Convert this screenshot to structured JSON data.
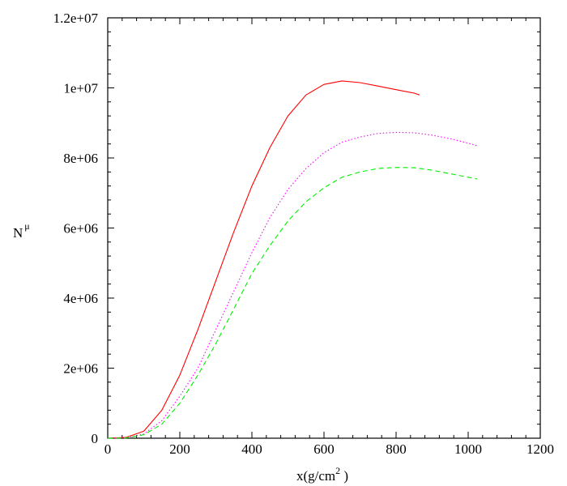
{
  "chart_data": {
    "type": "line",
    "title": "",
    "xlabel": "x(g/cm",
    "xlabel_sup": "2",
    "xlabel_end": " )",
    "ylabel": "N",
    "ylabel_sub": "μ",
    "xlim": [
      0,
      1200
    ],
    "ylim": [
      0,
      12000000
    ],
    "xticks": [
      0,
      200,
      400,
      600,
      800,
      1000,
      1200
    ],
    "yticks": [
      0,
      2000000,
      4000000,
      6000000,
      8000000,
      10000000,
      12000000
    ],
    "xtick_labels": [
      "0",
      "200",
      "400",
      "600",
      "800",
      "1000",
      "1200"
    ],
    "ytick_labels": [
      "0",
      "2e+06",
      "4e+06",
      "6e+06",
      "8e+06",
      "1e+07",
      "1.2e+07"
    ],
    "grid": false,
    "legend": "none",
    "series": [
      {
        "color": "#ff0000",
        "style": "solid",
        "x": [
          0,
          50,
          100,
          150,
          200,
          250,
          300,
          350,
          400,
          450,
          500,
          550,
          600,
          650,
          700,
          750,
          800,
          850,
          865
        ],
        "y": [
          0,
          20000,
          200000,
          800000,
          1800000,
          3100000,
          4500000,
          5900000,
          7200000,
          8300000,
          9200000,
          9800000,
          10100000,
          10200000,
          10150000,
          10050000,
          9950000,
          9850000,
          9800000
        ]
      },
      {
        "color": "#ff00ff",
        "style": "dotted",
        "x": [
          0,
          50,
          100,
          150,
          200,
          250,
          300,
          350,
          400,
          450,
          500,
          550,
          600,
          650,
          700,
          750,
          800,
          850,
          900,
          950,
          1000,
          1025
        ],
        "y": [
          0,
          10000,
          120000,
          500000,
          1200000,
          2000000,
          3100000,
          4200000,
          5300000,
          6300000,
          7100000,
          7700000,
          8150000,
          8450000,
          8600000,
          8700000,
          8730000,
          8720000,
          8650000,
          8550000,
          8420000,
          8350000
        ]
      },
      {
        "color": "#00ee00",
        "style": "dashed",
        "x": [
          0,
          50,
          100,
          150,
          200,
          250,
          300,
          350,
          400,
          450,
          500,
          550,
          600,
          650,
          700,
          750,
          800,
          850,
          900,
          950,
          1000,
          1025
        ],
        "y": [
          0,
          8000,
          100000,
          400000,
          1000000,
          1800000,
          2700000,
          3700000,
          4700000,
          5500000,
          6200000,
          6750000,
          7150000,
          7450000,
          7600000,
          7700000,
          7730000,
          7720000,
          7650000,
          7550000,
          7450000,
          7400000
        ]
      }
    ]
  }
}
